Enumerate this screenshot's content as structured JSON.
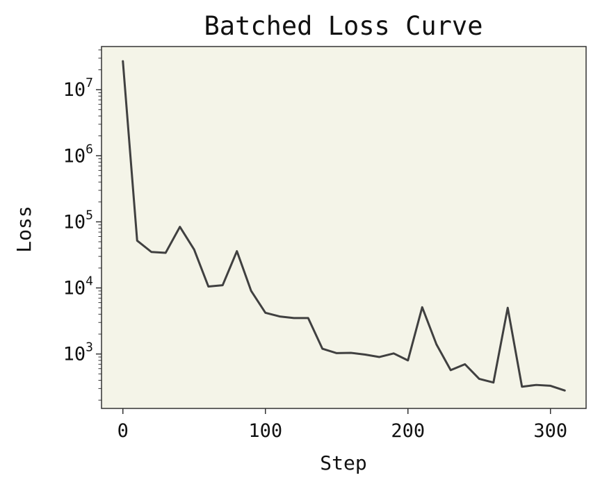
{
  "chart_data": {
    "type": "line",
    "title": "Batched Loss Curve",
    "xlabel": "Step",
    "ylabel": "Loss",
    "y_scale": "log",
    "xlim": [
      -15,
      325
    ],
    "ylim": [
      150,
      45000000
    ],
    "xticks": [
      {
        "value": 0,
        "label": "0"
      },
      {
        "value": 100,
        "label": "100"
      },
      {
        "value": 200,
        "label": "200"
      },
      {
        "value": 300,
        "label": "300"
      }
    ],
    "yticks": [
      {
        "value": 1000,
        "base": "10",
        "exp": "3"
      },
      {
        "value": 10000,
        "base": "10",
        "exp": "4"
      },
      {
        "value": 100000,
        "base": "10",
        "exp": "5"
      },
      {
        "value": 1000000,
        "base": "10",
        "exp": "6"
      },
      {
        "value": 10000000,
        "base": "10",
        "exp": "7"
      }
    ],
    "grid": false,
    "legend": "none",
    "colors": {
      "line": "#404040",
      "plot_background": "#f4f4e8",
      "axes": "#333333"
    },
    "series": [
      {
        "x": [
          0,
          10,
          20,
          30,
          40,
          50,
          60,
          70,
          80,
          90,
          100,
          110,
          120,
          130,
          140,
          150,
          160,
          170,
          180,
          190,
          200,
          210,
          220,
          230,
          240,
          250,
          260,
          270,
          280,
          290,
          300,
          310
        ],
        "y": [
          27000000,
          52000,
          35000,
          34000,
          84000,
          38000,
          10500,
          11000,
          36000,
          9000,
          4200,
          3700,
          3500,
          3500,
          1200,
          1030,
          1040,
          980,
          900,
          1020,
          800,
          5100,
          1400,
          570,
          700,
          420,
          370,
          5000,
          320,
          340,
          330,
          280
        ]
      }
    ]
  }
}
